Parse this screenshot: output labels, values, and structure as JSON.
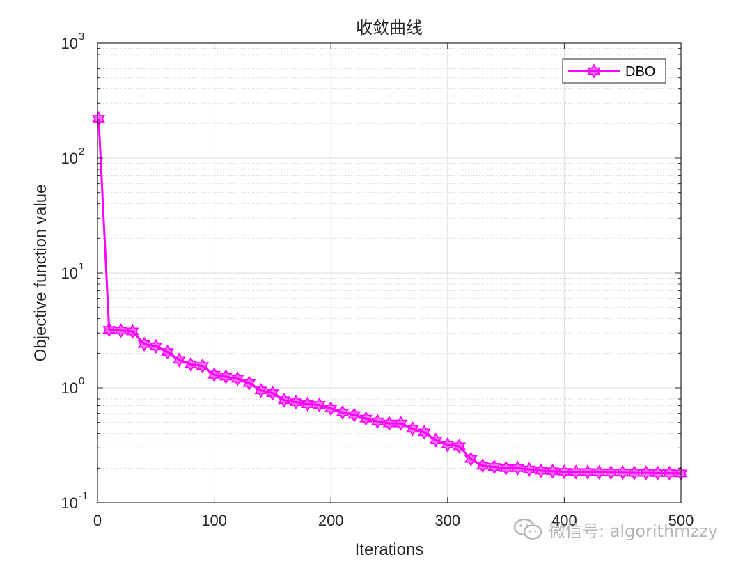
{
  "chart_data": {
    "type": "line",
    "title": "收敛曲线",
    "xlabel": "Iterations",
    "ylabel": "Objective function value",
    "xlim": [
      0,
      500
    ],
    "ylim": [
      0.1,
      1000
    ],
    "yscale": "log",
    "grid": true,
    "minor_grid": true,
    "legend_position": "top-right",
    "xticks": [
      "0",
      "100",
      "200",
      "300",
      "400",
      "500"
    ],
    "yticks": [
      {
        "base": "10",
        "exp": "-1"
      },
      {
        "base": "10",
        "exp": "0"
      },
      {
        "base": "10",
        "exp": "1"
      },
      {
        "base": "10",
        "exp": "2"
      },
      {
        "base": "10",
        "exp": "3"
      }
    ],
    "series": [
      {
        "name": "DBO",
        "color": "#ff00ff",
        "marker": "hexagram",
        "x": [
          1,
          10,
          20,
          30,
          40,
          50,
          60,
          70,
          80,
          90,
          100,
          110,
          120,
          130,
          140,
          150,
          160,
          170,
          180,
          190,
          200,
          210,
          220,
          230,
          240,
          250,
          260,
          270,
          280,
          290,
          300,
          310,
          320,
          330,
          340,
          350,
          360,
          370,
          380,
          390,
          400,
          410,
          420,
          430,
          440,
          450,
          460,
          470,
          480,
          490,
          500
        ],
        "y": [
          220,
          3.2,
          3.15,
          3.1,
          2.4,
          2.3,
          2.05,
          1.75,
          1.6,
          1.55,
          1.3,
          1.25,
          1.2,
          1.1,
          0.95,
          0.9,
          0.78,
          0.75,
          0.72,
          0.71,
          0.66,
          0.61,
          0.58,
          0.54,
          0.51,
          0.49,
          0.49,
          0.44,
          0.41,
          0.35,
          0.32,
          0.31,
          0.24,
          0.21,
          0.205,
          0.2,
          0.2,
          0.195,
          0.19,
          0.188,
          0.186,
          0.185,
          0.185,
          0.184,
          0.183,
          0.183,
          0.182,
          0.182,
          0.181,
          0.181,
          0.18
        ]
      }
    ]
  },
  "watermark": {
    "icon": "wechat-icon",
    "text": "微信号: algorithmzzy"
  }
}
